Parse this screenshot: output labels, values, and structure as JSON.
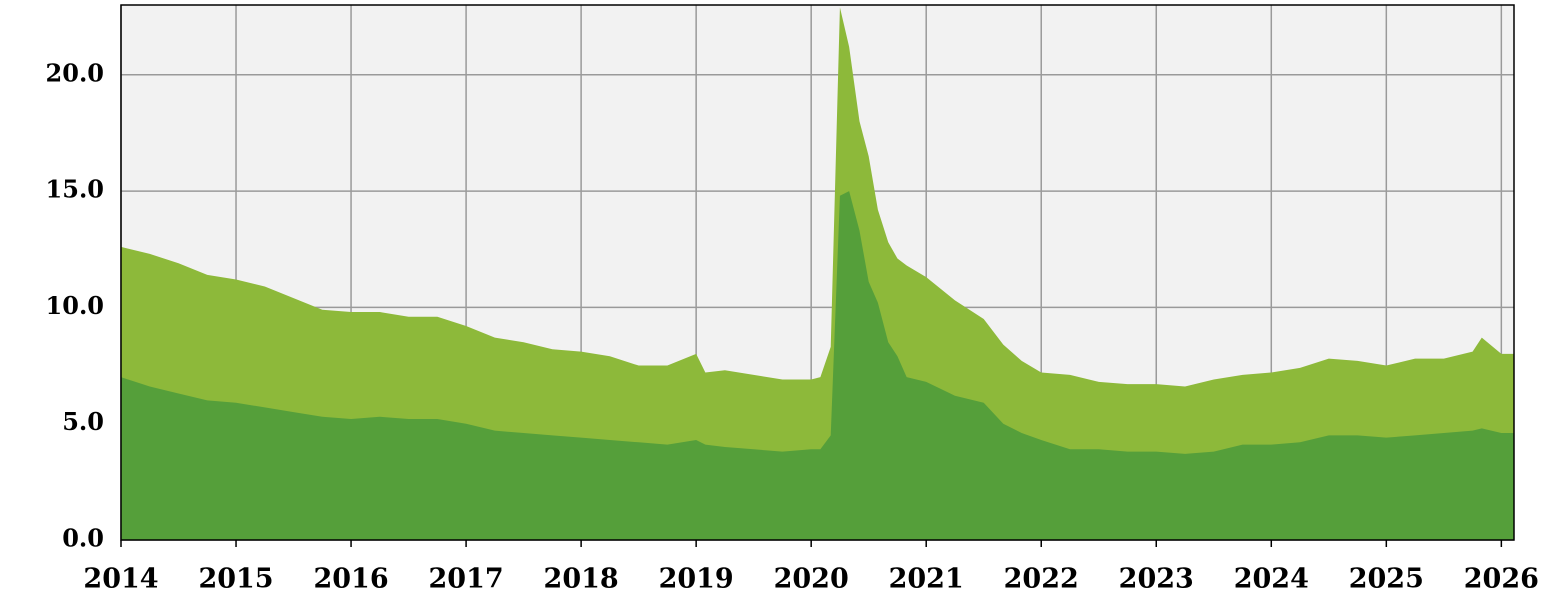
{
  "chart_data": {
    "type": "area",
    "x": [
      2014.0,
      2014.25,
      2014.5,
      2014.75,
      2015.0,
      2015.25,
      2015.5,
      2015.75,
      2016.0,
      2016.25,
      2016.5,
      2016.75,
      2017.0,
      2017.25,
      2017.5,
      2017.75,
      2018.0,
      2018.25,
      2018.5,
      2018.75,
      2019.0,
      2019.08,
      2019.25,
      2019.5,
      2019.75,
      2020.0,
      2020.08,
      2020.17,
      2020.25,
      2020.33,
      2020.42,
      2020.5,
      2020.58,
      2020.67,
      2020.75,
      2020.83,
      2021.0,
      2021.25,
      2021.5,
      2021.67,
      2021.83,
      2022.0,
      2022.25,
      2022.5,
      2022.75,
      2023.0,
      2023.25,
      2023.5,
      2023.75,
      2024.0,
      2024.25,
      2024.5,
      2024.75,
      2025.0,
      2025.25,
      2025.5,
      2025.75,
      2025.83,
      2026.0,
      2026.11
    ],
    "series": [
      {
        "color": "#8db93a",
        "values": [
          12.6,
          12.3,
          11.9,
          11.4,
          11.2,
          10.9,
          10.4,
          9.9,
          9.8,
          9.8,
          9.6,
          9.6,
          9.2,
          8.7,
          8.5,
          8.2,
          8.1,
          7.9,
          7.5,
          7.5,
          8.0,
          7.2,
          7.3,
          7.1,
          6.9,
          6.9,
          7.0,
          8.3,
          22.9,
          21.2,
          18.0,
          16.5,
          14.2,
          12.8,
          12.1,
          11.8,
          11.3,
          10.3,
          9.5,
          8.4,
          7.7,
          7.2,
          7.1,
          6.8,
          6.7,
          6.7,
          6.6,
          6.9,
          7.1,
          7.2,
          7.4,
          7.8,
          7.7,
          7.5,
          7.8,
          7.8,
          8.1,
          8.7,
          8.0,
          8.0
        ]
      },
      {
        "color": "#559f3a",
        "values": [
          7.0,
          6.6,
          6.3,
          6.0,
          5.9,
          5.7,
          5.5,
          5.3,
          5.2,
          5.3,
          5.2,
          5.2,
          5.0,
          4.7,
          4.6,
          4.5,
          4.4,
          4.3,
          4.2,
          4.1,
          4.3,
          4.1,
          4.0,
          3.9,
          3.8,
          3.9,
          3.9,
          4.5,
          14.8,
          15.0,
          13.3,
          11.1,
          10.2,
          8.5,
          7.9,
          7.0,
          6.8,
          6.2,
          5.9,
          5.0,
          4.6,
          4.3,
          3.9,
          3.9,
          3.8,
          3.8,
          3.7,
          3.8,
          4.1,
          4.1,
          4.2,
          4.5,
          4.5,
          4.4,
          4.5,
          4.6,
          4.7,
          4.8,
          4.6,
          4.6
        ]
      }
    ],
    "xlim": [
      2014,
      2026.11
    ],
    "xticks": [
      2014,
      2015,
      2016,
      2017,
      2018,
      2019,
      2020,
      2021,
      2022,
      2023,
      2024,
      2025,
      2026
    ],
    "ylim": [
      0,
      23
    ],
    "yticks": [
      {
        "value": 0,
        "label": "0.0"
      },
      {
        "value": 5,
        "label": "5.0"
      },
      {
        "value": 10,
        "label": "10.0"
      },
      {
        "value": 15,
        "label": "15.0"
      },
      {
        "value": 20,
        "label": "20.0"
      }
    ],
    "grid": true
  }
}
